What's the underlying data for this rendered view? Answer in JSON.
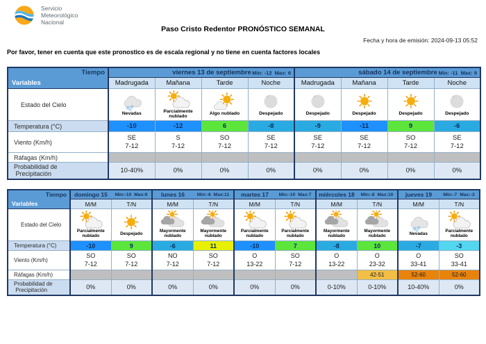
{
  "brand": {
    "org": [
      "Servicio",
      "Meteorológico",
      "Nacional"
    ]
  },
  "title": "Paso Cristo Redentor PRONÓSTICO SEMANAL",
  "emission": "Fecha y hora de emisión: 2024-09-13 05:52",
  "disclaimer": "Por favor, tener en cuenta que este pronostico es de escala regional y no tiene en cuenta factores locales",
  "corner": {
    "tiempo": "Tiempo",
    "variables": "Variables"
  },
  "row_labels": {
    "sky": "Estado del Cielo",
    "temp": "Temperatura (°C)",
    "wind": "Viento (Km/h)",
    "gust": "Ráfagas (Km/h)",
    "precip_line1": "Probabilidad de",
    "precip_line2": "Precipitación"
  },
  "colors": {
    "header_blue": "#5B9BD5",
    "subheader_bg": "#CFE2F3",
    "label_blue_bg": "#CBDCF0",
    "precip_bg": "#DEE8F4",
    "gust_gray": "#BFBFBF",
    "temp_deep_blue": "#1E90FF",
    "temp_light_blue": "#29ABE2",
    "temp_cyan": "#53D6F0",
    "temp_green": "#5CE63C",
    "temp_yellow": "#E8F000",
    "gust_gold": "#F2BE45",
    "gust_orange": "#E8830C"
  },
  "weekend_table": {
    "name": "forecast-table-weekend",
    "days": [
      {
        "title": "viernes 13 de septiembre",
        "min": "Min: -12",
        "max": "Max: 6",
        "slots": [
          {
            "period": "Madrugada",
            "sky": "Nevadas",
            "icon": "snow-cloud-icon",
            "temp": "-10",
            "temp_color": "temp_deep_blue",
            "wind_dir": "SE",
            "wind_speed": "7-12",
            "gust": "",
            "gust_color": "",
            "precip": "10-40%"
          },
          {
            "period": "Mañana",
            "sky": "Parcialmente nublado",
            "icon": "sun-behind-cloud-icon",
            "temp": "-12",
            "temp_color": "temp_deep_blue",
            "wind_dir": "S",
            "wind_speed": "7-12",
            "gust": "",
            "gust_color": "",
            "precip": "0%"
          },
          {
            "period": "Tarde",
            "sky": "Algo nublado",
            "icon": "sun-small-cloud-icon",
            "temp": "6",
            "temp_color": "temp_green",
            "wind_dir": "SO",
            "wind_speed": "7-12",
            "gust": "",
            "gust_color": "",
            "precip": "0%"
          },
          {
            "period": "Noche",
            "sky": "Despejado",
            "icon": "moon-clear-night-icon",
            "temp": "-8",
            "temp_color": "temp_light_blue",
            "wind_dir": "SE",
            "wind_speed": "7-12",
            "gust": "",
            "gust_color": "",
            "precip": "0%"
          }
        ]
      },
      {
        "title": "sábado 14 de septiembre",
        "min": "Min: -11",
        "max": "Max: 9",
        "slots": [
          {
            "period": "Madrugada",
            "sky": "Despejado",
            "icon": "moon-clear-night-icon",
            "temp": "-9",
            "temp_color": "temp_light_blue",
            "wind_dir": "SE",
            "wind_speed": "7-12",
            "gust": "",
            "gust_color": "",
            "precip": "0%"
          },
          {
            "period": "Mañana",
            "sky": "Despejado",
            "icon": "sun-icon",
            "temp": "-11",
            "temp_color": "temp_deep_blue",
            "wind_dir": "SE",
            "wind_speed": "7-12",
            "gust": "",
            "gust_color": "",
            "precip": "0%"
          },
          {
            "period": "Tarde",
            "sky": "Despejado",
            "icon": "sun-icon",
            "temp": "9",
            "temp_color": "temp_green",
            "wind_dir": "SO",
            "wind_speed": "7-12",
            "gust": "",
            "gust_color": "",
            "precip": "0%"
          },
          {
            "period": "Noche",
            "sky": "Despejado",
            "icon": "moon-clear-night-icon",
            "temp": "-6",
            "temp_color": "temp_light_blue",
            "wind_dir": "SE",
            "wind_speed": "7-12",
            "gust": "",
            "gust_color": "",
            "precip": "0%"
          }
        ]
      }
    ]
  },
  "extended_table": {
    "name": "forecast-table-extended",
    "days": [
      {
        "title": "domingo 15",
        "min": "Min:-10",
        "max": "Max:9",
        "slots": [
          {
            "period": "M/M",
            "sky": "Parcialmente nublado",
            "icon": "sun-behind-cloud-icon",
            "temp": "-10",
            "temp_color": "temp_deep_blue",
            "wind_dir": "SO",
            "wind_speed": "7-12",
            "gust": "",
            "gust_color": "",
            "precip": "0%"
          },
          {
            "period": "T/N",
            "sky": "Despejado",
            "icon": "sun-icon",
            "temp": "9",
            "temp_color": "temp_green",
            "wind_dir": "SO",
            "wind_speed": "7-12",
            "gust": "",
            "gust_color": "",
            "precip": "0%"
          }
        ]
      },
      {
        "title": "lunes 16",
        "min": "Min:-6",
        "max": "Max:11",
        "slots": [
          {
            "period": "M/M",
            "sky": "Mayormente nublado",
            "icon": "mostly-cloudy-icon",
            "temp": "-6",
            "temp_color": "temp_light_blue",
            "wind_dir": "NO",
            "wind_speed": "7-12",
            "gust": "",
            "gust_color": "",
            "precip": "0%"
          },
          {
            "period": "T/N",
            "sky": "Mayormente nublado",
            "icon": "mostly-cloudy-icon",
            "temp": "11",
            "temp_color": "temp_yellow",
            "wind_dir": "SO",
            "wind_speed": "7-12",
            "gust": "",
            "gust_color": "",
            "precip": "0%"
          }
        ]
      },
      {
        "title": "martes 17",
        "min": "Min:-10",
        "max": "Max:7",
        "slots": [
          {
            "period": "M/M",
            "sky": "Parcialmente nublado",
            "icon": "sun-behind-cloud-icon",
            "temp": "-10",
            "temp_color": "temp_deep_blue",
            "wind_dir": "O",
            "wind_speed": "13-22",
            "gust": "",
            "gust_color": "",
            "precip": "0%"
          },
          {
            "period": "T/N",
            "sky": "Parcialmente nublado",
            "icon": "sun-behind-cloud-icon",
            "temp": "7",
            "temp_color": "temp_green",
            "wind_dir": "SO",
            "wind_speed": "7-12",
            "gust": "",
            "gust_color": "",
            "precip": "0%"
          }
        ]
      },
      {
        "title": "miércoles 18",
        "min": "Min:-8",
        "max": "Max:10",
        "slots": [
          {
            "period": "M/M",
            "sky": "Mayormente nublado",
            "icon": "mostly-cloudy-icon",
            "temp": "-8",
            "temp_color": "temp_light_blue",
            "wind_dir": "O",
            "wind_speed": "13-22",
            "gust": "",
            "gust_color": "",
            "precip": "0-10%"
          },
          {
            "period": "T/N",
            "sky": "Mayormente nublado",
            "icon": "mostly-cloudy-icon",
            "temp": "10",
            "temp_color": "temp_green",
            "wind_dir": "O",
            "wind_speed": "23-32",
            "gust": "42-51",
            "gust_color": "gust_gold",
            "precip": "0-10%"
          }
        ]
      },
      {
        "title": "jueves 19",
        "min": "Min:-7",
        "max": "Max:-3",
        "slots": [
          {
            "period": "M/M",
            "sky": "Nevadas",
            "icon": "snow-cloud-icon",
            "temp": "-7",
            "temp_color": "temp_light_blue",
            "wind_dir": "O",
            "wind_speed": "33-41",
            "gust": "52-60",
            "gust_color": "gust_orange",
            "precip": "10-40%"
          },
          {
            "period": "T/N",
            "sky": "Parcialmente nublado",
            "icon": "sun-behind-cloud-icon",
            "temp": "-3",
            "temp_color": "temp_cyan",
            "wind_dir": "SO",
            "wind_speed": "33-41",
            "gust": "52-60",
            "gust_color": "gust_orange",
            "precip": "0%"
          }
        ]
      }
    ]
  }
}
